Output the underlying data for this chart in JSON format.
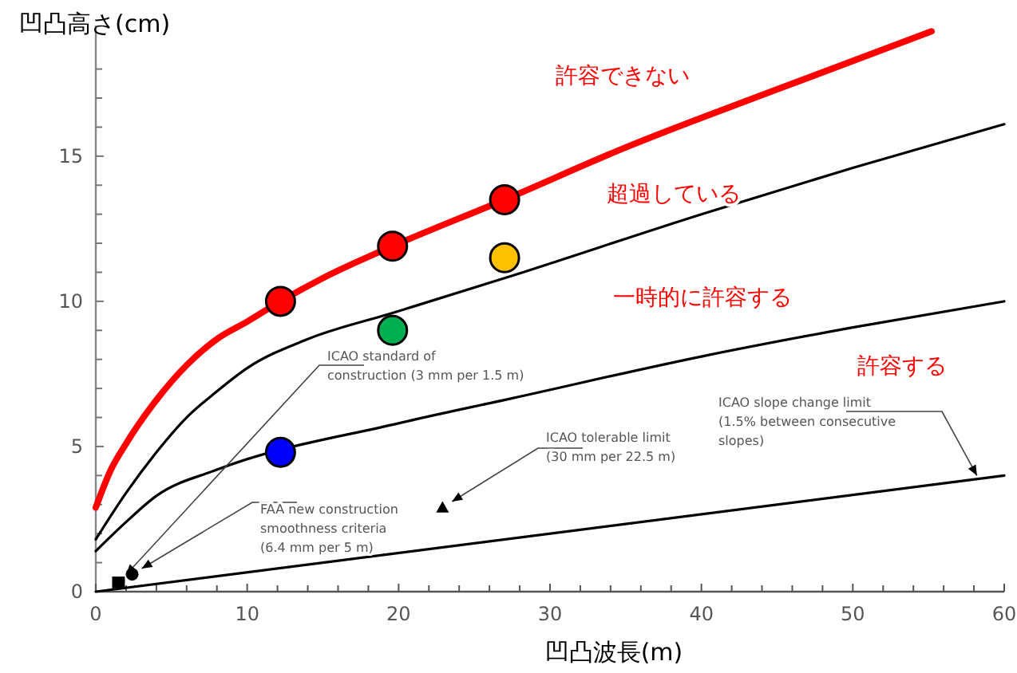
{
  "chart_data": {
    "type": "line",
    "xlabel": "凹凸波長(m)",
    "ylabel": "凹凸高さ(cm)",
    "xlim": [
      0,
      60
    ],
    "ylim": [
      0,
      19.5
    ],
    "xticks": [
      0,
      {
        "value": 2,
        "label": null
      },
      {
        "value": 4,
        "label": null
      },
      {
        "value": 6,
        "label": null
      },
      {
        "value": 8,
        "label": null
      },
      10,
      {
        "value": 12,
        "label": null
      },
      {
        "value": 14,
        "label": null
      },
      {
        "value": 16,
        "label": null
      },
      {
        "value": 18,
        "label": null
      },
      20,
      {
        "value": 22,
        "label": null
      },
      {
        "value": 24,
        "label": null
      },
      {
        "value": 26,
        "label": null
      },
      {
        "value": 28,
        "label": null
      },
      30,
      {
        "value": 32,
        "label": null
      },
      {
        "value": 34,
        "label": null
      },
      {
        "value": 36,
        "label": null
      },
      {
        "value": 38,
        "label": null
      },
      40,
      {
        "value": 42,
        "label": null
      },
      {
        "value": 44,
        "label": null
      },
      {
        "value": 46,
        "label": null
      },
      {
        "value": 48,
        "label": null
      },
      50,
      {
        "value": 52,
        "label": null
      },
      {
        "value": 54,
        "label": null
      },
      {
        "value": 56,
        "label": null
      },
      {
        "value": 58,
        "label": null
      },
      60
    ],
    "yticks": [
      0,
      {
        "value": 1,
        "label": null
      },
      {
        "value": 2,
        "label": null
      },
      {
        "value": 3,
        "label": null
      },
      {
        "value": 4,
        "label": null
      },
      5,
      {
        "value": 6,
        "label": null
      },
      {
        "value": 7,
        "label": null
      },
      {
        "value": 8,
        "label": null
      },
      {
        "value": 9,
        "label": null
      },
      10,
      {
        "value": 11,
        "label": null
      },
      {
        "value": 12,
        "label": null
      },
      {
        "value": 13,
        "label": null
      },
      {
        "value": 14,
        "label": null
      },
      15,
      {
        "value": 16,
        "label": null
      },
      {
        "value": 17,
        "label": null
      },
      {
        "value": 18,
        "label": null
      }
    ],
    "grid": false,
    "series": [
      {
        "type": "line",
        "color": "#000000",
        "x": [
          0,
          60
        ],
        "values": [
          0,
          4.0
        ]
      },
      {
        "type": "line",
        "color": "#000000",
        "x": [
          0,
          2,
          4,
          8,
          12,
          20,
          27.4,
          40,
          50,
          60
        ],
        "values": [
          1.4,
          2.4,
          3.3,
          4.2,
          null,
          5.8,
          6.65,
          8.1,
          9.1,
          10
        ]
      },
      {
        "type": "line",
        "color": "#000000",
        "x": [
          0,
          2,
          4,
          6,
          8,
          10,
          14,
          19.6,
          27,
          40,
          50,
          60
        ],
        "values": [
          1.8,
          3.4,
          4.8,
          6,
          6.9,
          7.7,
          8.7,
          9.6,
          10.8,
          13,
          14.6,
          16.1
        ]
      },
      {
        "type": "line",
        "color": "#ff0000",
        "x": [
          0,
          1,
          2,
          4,
          6,
          8,
          10,
          12.2,
          15,
          19.6,
          27,
          35,
          45,
          55.2
        ],
        "values": [
          2.9,
          4.2,
          5.1,
          6.6,
          7.8,
          8.7,
          9.3,
          10,
          10.8,
          11.9,
          13.5,
          15.3,
          17.3,
          19.3
        ]
      },
      {
        "type": "scatter",
        "marker": "square",
        "color": "#000000",
        "x": [
          1.5
        ],
        "values": [
          0.3
        ]
      },
      {
        "type": "scatter",
        "marker": "circle",
        "color": "#000000",
        "x": [
          2.4
        ],
        "values": [
          0.6
        ]
      },
      {
        "type": "scatter",
        "marker": "triangle",
        "color": "#000000",
        "x": [
          22.9
        ],
        "values": [
          2.9
        ]
      },
      {
        "type": "scatter",
        "marker": "circle",
        "color": "#ff0000",
        "x": [
          12.2,
          19.6,
          27
        ],
        "values": [
          10,
          11.9,
          13.5
        ]
      },
      {
        "type": "scatter",
        "marker": "circle",
        "color": "#ffc000",
        "x": [
          27
        ],
        "values": [
          11.5
        ]
      },
      {
        "type": "scatter",
        "marker": "circle",
        "color": "#00b050",
        "x": [
          19.6
        ],
        "values": [
          9
        ]
      },
      {
        "type": "scatter",
        "marker": "circle",
        "color": "#0000ff",
        "x": [
          12.2
        ],
        "values": [
          4.8
        ]
      }
    ],
    "annotations": [
      "許容できない",
      "超過している",
      "一時的に許容する",
      "許容する",
      {
        "text": "ICAO standard of\nconstruction (3 mm per 1.5 m)",
        "x": 1.5,
        "y": 0.3
      },
      {
        "text": "FAA new construction\nsmoothness criteria\n(6.4 mm per 5 m)",
        "x": 2.4,
        "y": 0.6
      },
      {
        "text": "ICAO tolerable limit\n(30 mm per 22.5 m)",
        "x": 22.9,
        "y": 2.9
      },
      {
        "text": "ICAO slope change limit\n(1.5% between consecutive\nslopes)",
        "x": 58.3,
        "y": 3.9
      }
    ]
  }
}
